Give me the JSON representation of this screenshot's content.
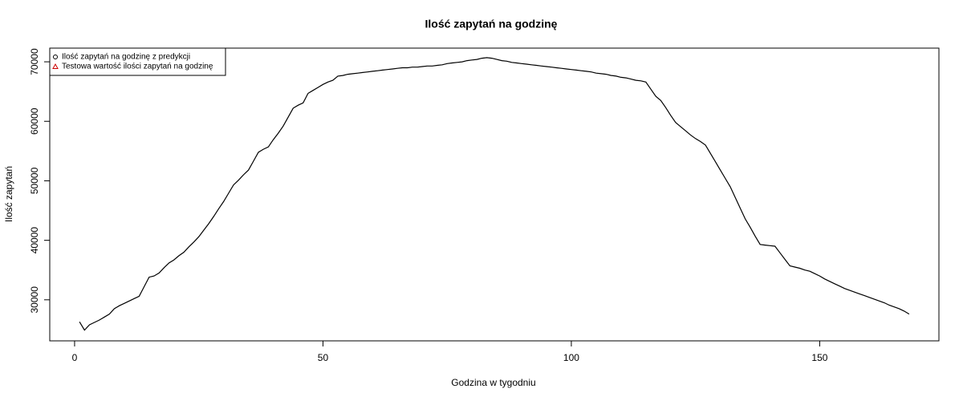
{
  "chart_data": {
    "type": "line",
    "title": "Ilość zapytań na godzinę",
    "x_label": "Godzina w tygodniu",
    "y_label": "Ilość zapytań",
    "color": "#000000",
    "legend": {
      "position": "topleft",
      "entries": [
        {
          "label": "Ilość zapytań na godzinę z predykcji",
          "symbol": "circle",
          "color": "#000000"
        },
        {
          "label": "Testowa wartość ilości zapytań na godzinę",
          "symbol": "triangle",
          "color": "#cc0000"
        }
      ]
    },
    "xlim": [
      -5,
      174
    ],
    "ylim": [
      23100,
      72300
    ],
    "xticks": [
      0,
      50,
      100,
      150
    ],
    "yticks": [
      30000,
      40000,
      50000,
      60000,
      70000
    ],
    "x": [
      1,
      2,
      3,
      4,
      5,
      6,
      7,
      8,
      9,
      10,
      11,
      12,
      13,
      14,
      15,
      16,
      17,
      18,
      19,
      20,
      21,
      22,
      23,
      24,
      25,
      26,
      27,
      28,
      29,
      30,
      31,
      32,
      33,
      34,
      35,
      36,
      37,
      38,
      39,
      40,
      41,
      42,
      43,
      44,
      45,
      46,
      47,
      48,
      49,
      50,
      51,
      52,
      53,
      54,
      55,
      56,
      57,
      58,
      59,
      60,
      61,
      62,
      63,
      64,
      65,
      66,
      67,
      68,
      69,
      70,
      71,
      72,
      73,
      74,
      75,
      76,
      77,
      78,
      79,
      80,
      81,
      82,
      83,
      84,
      85,
      86,
      87,
      88,
      89,
      90,
      91,
      92,
      93,
      94,
      95,
      96,
      97,
      98,
      99,
      100,
      101,
      102,
      103,
      104,
      105,
      106,
      107,
      108,
      109,
      110,
      111,
      112,
      113,
      114,
      115,
      116,
      117,
      118,
      119,
      120,
      121,
      122,
      123,
      124,
      125,
      126,
      127,
      128,
      129,
      130,
      131,
      132,
      133,
      134,
      135,
      136,
      137,
      138,
      139,
      140,
      141,
      142,
      143,
      144,
      145,
      146,
      147,
      148,
      149,
      150,
      151,
      152,
      153,
      154,
      155,
      156,
      157,
      158,
      159,
      160,
      161,
      162,
      163,
      164,
      165,
      166,
      167,
      168
    ],
    "values": [
      26300,
      24900,
      25800,
      26200,
      26600,
      27100,
      27600,
      28500,
      29000,
      29400,
      29800,
      30200,
      30600,
      32200,
      33800,
      34000,
      34500,
      35400,
      36200,
      36700,
      37400,
      38000,
      38900,
      39700,
      40600,
      41700,
      42800,
      44000,
      45300,
      46500,
      47900,
      49300,
      50100,
      51000,
      51800,
      53300,
      54800,
      55300,
      55700,
      56900,
      58000,
      59200,
      60700,
      62200,
      62700,
      63100,
      64700,
      65200,
      65700,
      66200,
      66600,
      66900,
      67600,
      67700,
      67900,
      68000,
      68100,
      68200,
      68300,
      68400,
      68500,
      68600,
      68700,
      68800,
      68900,
      69000,
      69000,
      69100,
      69100,
      69200,
      69300,
      69300,
      69400,
      69500,
      69700,
      69800,
      69900,
      70000,
      70200,
      70300,
      70400,
      70600,
      70700,
      70600,
      70400,
      70200,
      70100,
      69900,
      69800,
      69700,
      69600,
      69500,
      69400,
      69300,
      69200,
      69100,
      69000,
      68900,
      68800,
      68700,
      68600,
      68500,
      68400,
      68300,
      68100,
      68000,
      67900,
      67700,
      67600,
      67400,
      67300,
      67100,
      66900,
      66800,
      66600,
      65400,
      64200,
      63500,
      62300,
      61000,
      59800,
      59100,
      58400,
      57700,
      57100,
      56600,
      56000,
      54600,
      53200,
      51800,
      50400,
      49000,
      47200,
      45400,
      43600,
      42200,
      40700,
      39300,
      39200,
      39100,
      39000,
      37900,
      36800,
      35700,
      35500,
      35300,
      35000,
      34800,
      34400,
      34000,
      33500,
      33100,
      32700,
      32300,
      31900,
      31600,
      31300,
      31000,
      30700,
      30400,
      30100,
      29800,
      29500,
      29100,
      28800,
      28500,
      28100,
      27600
    ]
  }
}
